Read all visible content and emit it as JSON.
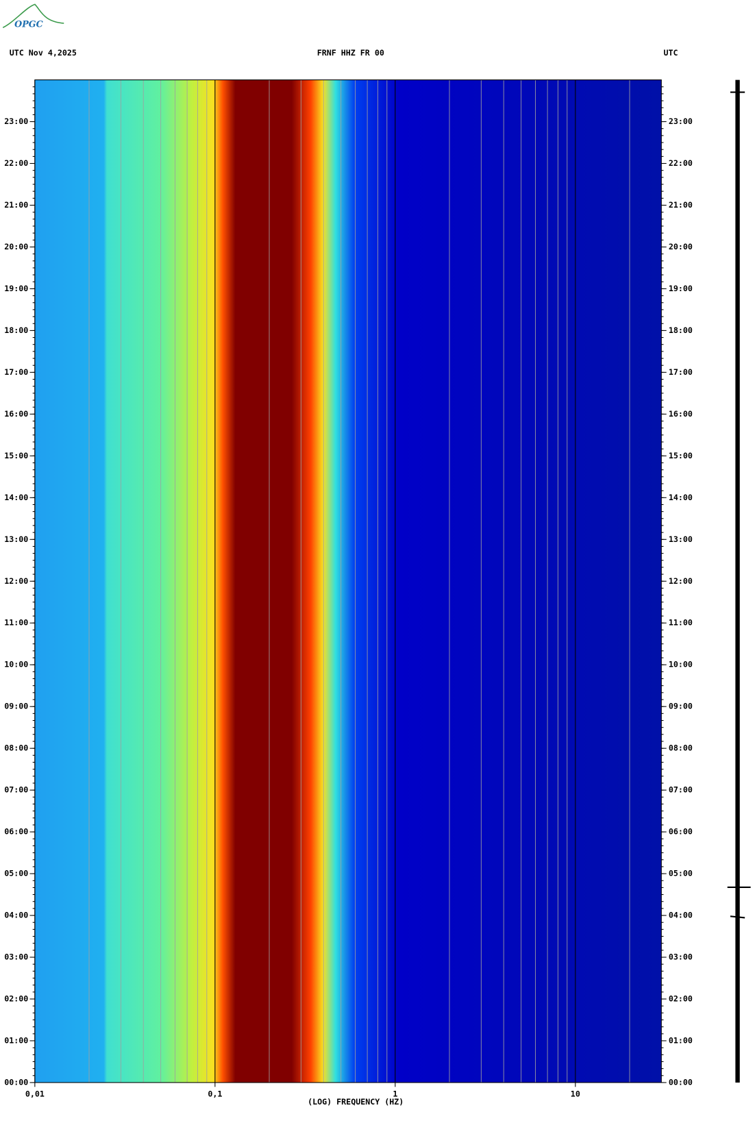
{
  "logo": "OPGC",
  "chart_data": {
    "type": "spectrogram",
    "title": "FRNF HHZ FR 00",
    "date_label": "UTC  Nov 4,2025",
    "right_label": "UTC",
    "x_label": "(LOG) FREQUENCY (HZ)",
    "xscale": "log",
    "xlim": [
      0.01,
      30
    ],
    "xticks": [
      {
        "value": 0.01,
        "label": "0,01"
      },
      {
        "value": 0.1,
        "label": "0,1"
      },
      1,
      10
    ],
    "ylim": [
      0,
      24
    ],
    "yticks": [
      {
        "value": 0,
        "label": "00:00"
      },
      {
        "value": 1,
        "label": "01:00"
      },
      {
        "value": 2,
        "label": "02:00"
      },
      {
        "value": 3,
        "label": "03:00"
      },
      {
        "value": 4,
        "label": "04:00"
      },
      {
        "value": 5,
        "label": "05:00"
      },
      {
        "value": 6,
        "label": "06:00"
      },
      {
        "value": 7,
        "label": "07:00"
      },
      {
        "value": 8,
        "label": "08:00"
      },
      {
        "value": 9,
        "label": "09:00"
      },
      {
        "value": 10,
        "label": "10:00"
      },
      {
        "value": 11,
        "label": "11:00"
      },
      {
        "value": 12,
        "label": "12:00"
      },
      {
        "value": 13,
        "label": "13:00"
      },
      {
        "value": 14,
        "label": "14:00"
      },
      {
        "value": 15,
        "label": "15:00"
      },
      {
        "value": 16,
        "label": "16:00"
      },
      {
        "value": 17,
        "label": "17:00"
      },
      {
        "value": 18,
        "label": "18:00"
      },
      {
        "value": 19,
        "label": "19:00"
      },
      {
        "value": 20,
        "label": "20:00"
      },
      {
        "value": 21,
        "label": "21:00"
      },
      {
        "value": 22,
        "label": "22:00"
      },
      {
        "value": 23,
        "label": "23:00"
      }
    ],
    "grid": true
  }
}
